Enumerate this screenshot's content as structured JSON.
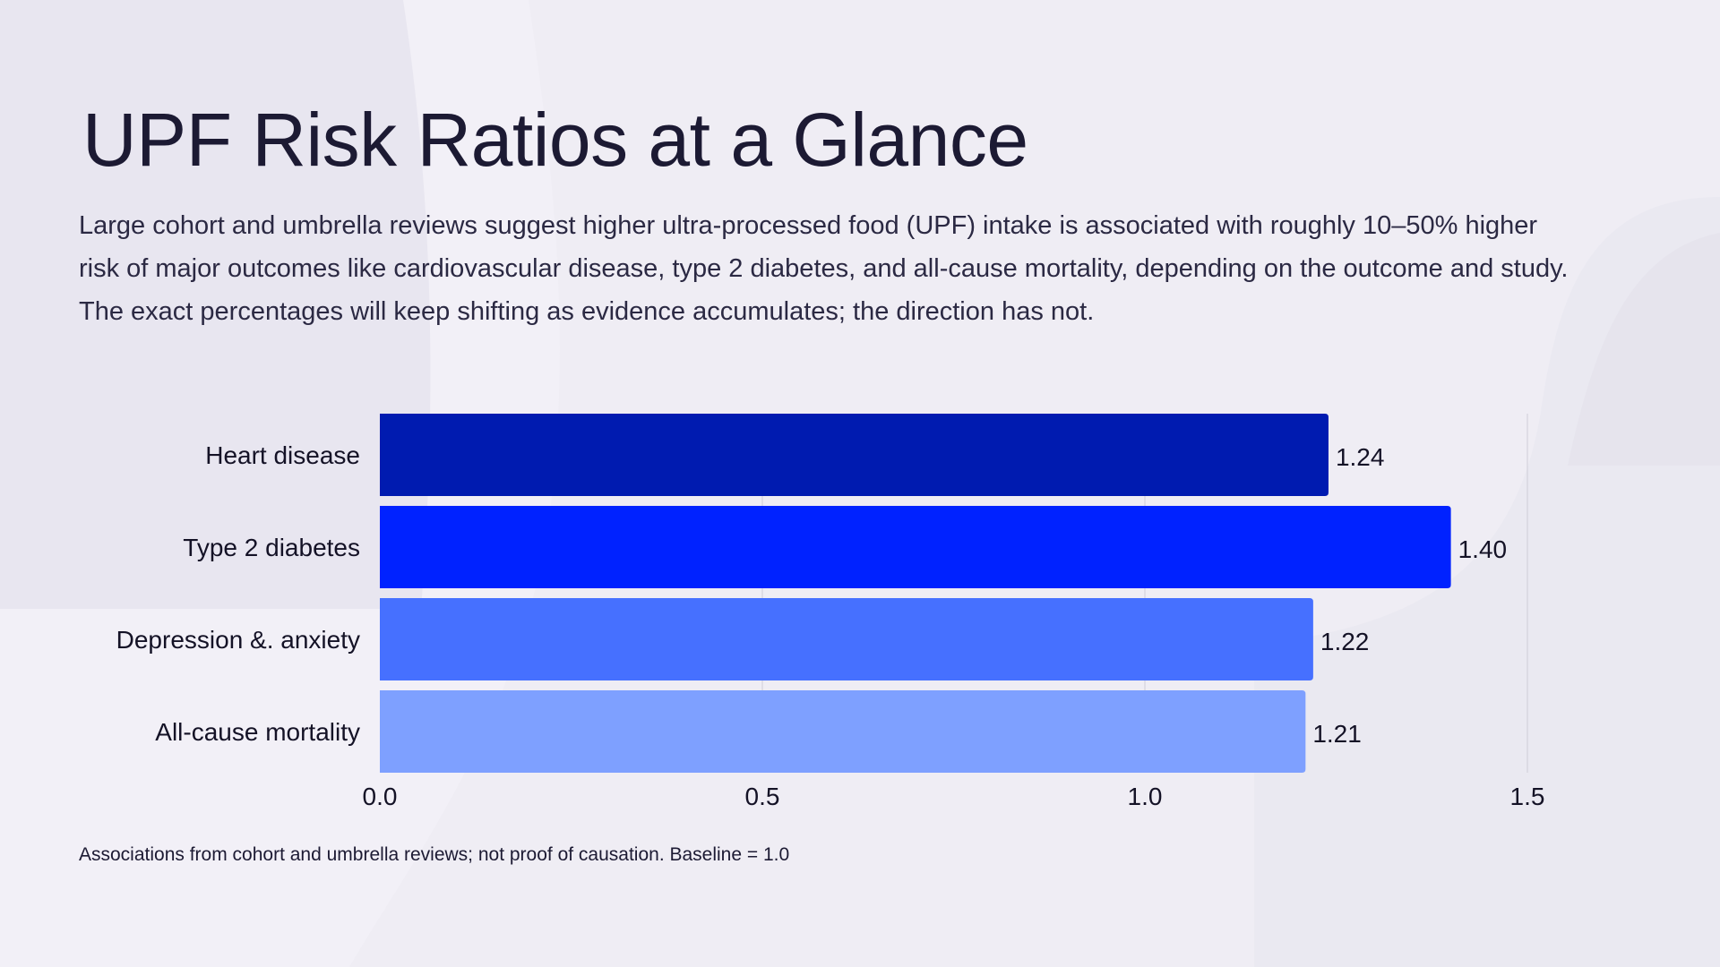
{
  "title": "UPF Risk Ratios at a Glance",
  "subtitle": "Large cohort and umbrella reviews suggest higher ultra-processed food (UPF) intake is associated with roughly 10–50% higher risk of major outcomes like cardiovascular disease, type 2 diabetes, and all-cause mortality, depending on the outcome and study. The exact percentages will keep shifting as evidence accumulates; the direction has not.",
  "footnote": "Associations from cohort and umbrella reviews; not proof of causation. Baseline = 1.0",
  "colors": {
    "background": "#efedf4",
    "bars": [
      "#001bb0",
      "#0022ff",
      "#4670ff",
      "#7ea0ff"
    ],
    "gridline": "#cfcdd8"
  },
  "chart_data": {
    "type": "bar",
    "orientation": "horizontal",
    "categories": [
      "Heart disease",
      "Type 2 diabetes",
      "Depression &. anxiety",
      "All-cause mortality"
    ],
    "values": [
      1.24,
      1.4,
      1.22,
      1.21
    ],
    "value_labels": [
      "1.24",
      "1.40",
      "1.22",
      "1.21"
    ],
    "xlim": [
      0,
      1.5
    ],
    "xticks": [
      0.0,
      0.5,
      1.0,
      1.5
    ],
    "xtick_labels": [
      "0.0",
      "0.5",
      "1.0",
      "1.5"
    ],
    "grid": true,
    "legend": "none"
  }
}
